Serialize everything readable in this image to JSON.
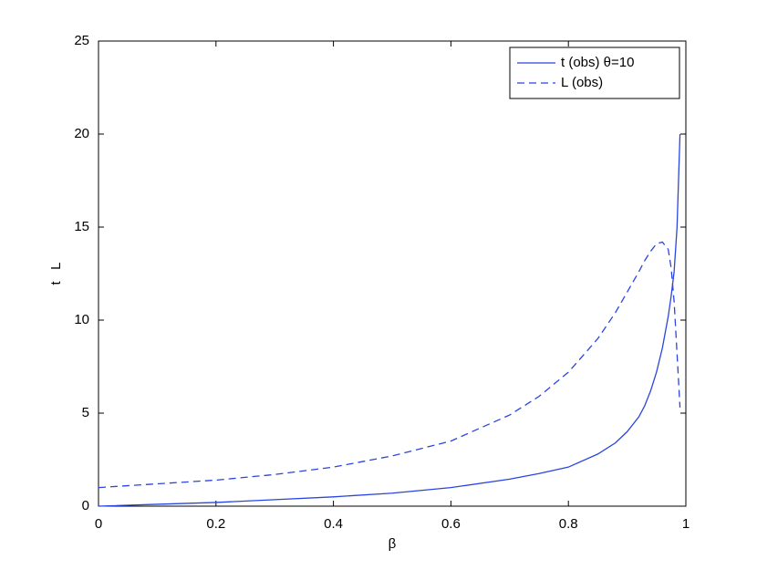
{
  "chart_data": {
    "type": "line",
    "x_label": "β",
    "y_label": "t   L",
    "x": [
      0,
      0.1,
      0.2,
      0.3,
      0.4,
      0.5,
      0.6,
      0.7,
      0.75,
      0.8,
      0.85,
      0.88,
      0.9,
      0.92,
      0.93,
      0.94,
      0.95,
      0.96,
      0.97,
      0.975,
      0.98,
      0.985,
      0.99
    ],
    "series": [
      {
        "name": "t (obs) θ=10",
        "color": "#2a45e0",
        "line_style": "solid",
        "values": [
          0,
          0.1,
          0.2,
          0.35,
          0.5,
          0.7,
          1.0,
          1.45,
          1.75,
          2.1,
          2.8,
          3.4,
          4.0,
          4.8,
          5.4,
          6.2,
          7.2,
          8.5,
          10.2,
          11.3,
          12.6,
          15.0,
          20.0
        ]
      },
      {
        "name": "L (obs)",
        "color": "#2a45e0",
        "line_style": "dashed",
        "values": [
          1.0,
          1.2,
          1.4,
          1.7,
          2.1,
          2.7,
          3.5,
          4.9,
          5.9,
          7.2,
          9.0,
          10.4,
          11.5,
          12.6,
          13.2,
          13.7,
          14.1,
          14.2,
          13.8,
          12.8,
          11.0,
          8.2,
          5.3
        ]
      }
    ],
    "xlim": [
      0,
      1
    ],
    "xticks": [
      0,
      0.2,
      0.4,
      0.6,
      0.8,
      1
    ],
    "ylim": [
      0,
      25
    ],
    "yticks": [
      0,
      5,
      10,
      15,
      20,
      25
    ],
    "grid": false,
    "legend": "upper right"
  }
}
